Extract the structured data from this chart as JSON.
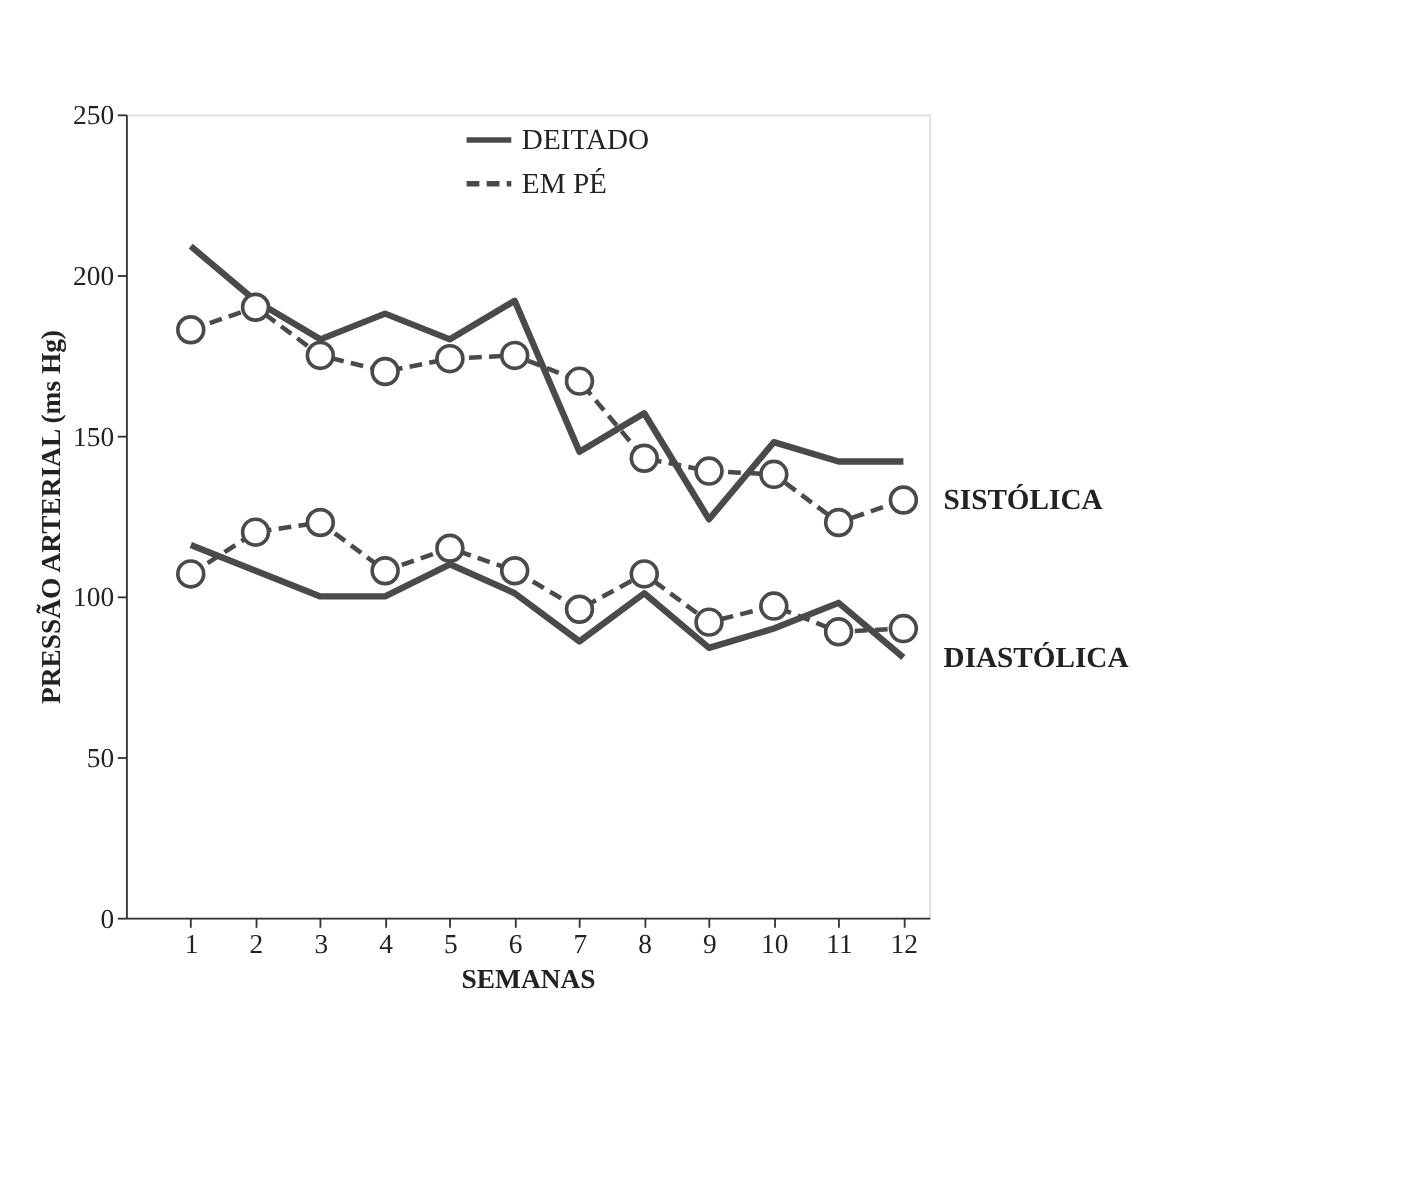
{
  "chart_data": {
    "type": "line",
    "xlabel": "SEMANAS",
    "ylabel": "PRESSÃO ARTERIAL (ms Hg)",
    "x": [
      1,
      2,
      3,
      4,
      5,
      6,
      7,
      8,
      9,
      10,
      11,
      12
    ],
    "xlim": [
      0,
      12.4
    ],
    "xticks": [
      1,
      2,
      3,
      4,
      5,
      6,
      7,
      8,
      9,
      10,
      11,
      12
    ],
    "ylim": [
      0,
      250
    ],
    "yticks": [
      0,
      50,
      100,
      150,
      200,
      250
    ],
    "grid": false,
    "legend": "top",
    "series": [
      {
        "name": "DEITADO",
        "color": "#4a4a4a",
        "line_style": "solid",
        "marker": "none",
        "values": [
          209,
          192,
          180,
          188,
          180,
          192,
          145,
          157,
          124,
          148,
          142,
          142
        ]
      },
      {
        "name": "EM PÉ",
        "color": "#4a4a4a",
        "line_style": "dashed",
        "marker": "circle",
        "values": [
          183,
          190,
          175,
          170,
          174,
          175,
          167,
          143,
          139,
          138,
          123,
          130
        ]
      },
      {
        "color": "#4a4a4a",
        "line_style": "solid",
        "marker": "none",
        "values": [
          116,
          108,
          100,
          100,
          110,
          101,
          86,
          101,
          84,
          90,
          98,
          81
        ]
      },
      {
        "color": "#4a4a4a",
        "line_style": "dashed",
        "marker": "circle",
        "values": [
          107,
          120,
          123,
          108,
          115,
          108,
          96,
          107,
          92,
          97,
          89,
          90
        ]
      }
    ],
    "annotations": [
      {
        "text": "SISTÓLICA",
        "x": 12,
        "y": 130
      },
      {
        "text": "DIASTÓLICA",
        "x": 12,
        "y": 81
      }
    ]
  }
}
